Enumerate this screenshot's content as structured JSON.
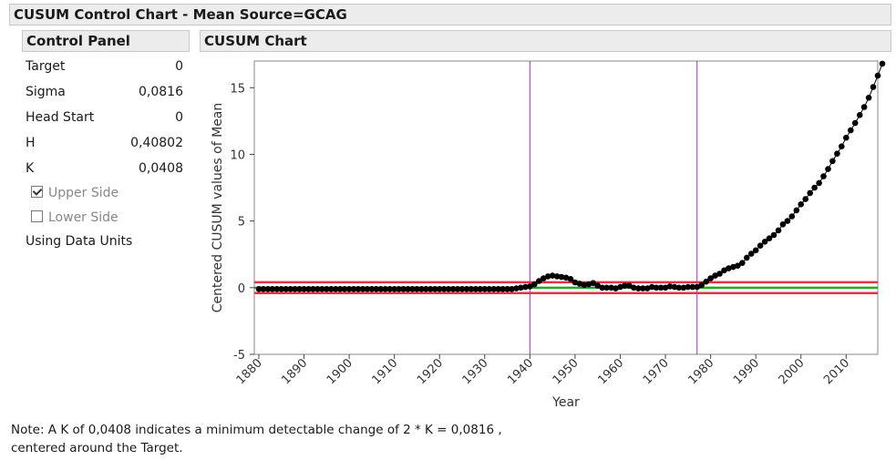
{
  "window": {
    "title": "CUSUM Control Chart - Mean Source=GCAG"
  },
  "control_panel": {
    "title": "Control Panel",
    "params": [
      {
        "label": "Target",
        "value": "0"
      },
      {
        "label": "Sigma",
        "value": "0,0816"
      },
      {
        "label": "Head Start",
        "value": "0"
      },
      {
        "label": "H",
        "value": "0,40802"
      },
      {
        "label": "K",
        "value": "0,0408"
      }
    ],
    "upper_side": {
      "label": "Upper Side",
      "checked": true
    },
    "lower_side": {
      "label": "Lower Side",
      "checked": false
    },
    "units_label": "Using Data Units"
  },
  "chart_panel": {
    "title": "CUSUM Chart"
  },
  "note": "Note: A K of 0,0408 indicates a minimum detectable change of 2 * K = 0,0816 , centered around the Target.",
  "colors": {
    "limit": "#e8304a",
    "center": "#22aa22",
    "marker": "#000000",
    "ref_line": "#9b30c8"
  },
  "chart_data": {
    "type": "scatter",
    "title": "",
    "xlabel": "Year",
    "ylabel": "Centered CUSUM values of Mean",
    "xlim": [
      1879,
      2017
    ],
    "ylim": [
      -5,
      17
    ],
    "x_ticks": [
      "1880",
      "1890",
      "1900",
      "1910",
      "1920",
      "1930",
      "1940",
      "1950",
      "1960",
      "1970",
      "1980",
      "1990",
      "2000",
      "2010"
    ],
    "y_ticks": [
      "-5",
      "0",
      "5",
      "10",
      "15"
    ],
    "grid": false,
    "upper_limit": 0.408,
    "lower_limit": -0.408,
    "center_line": 0,
    "vertical_lines": [
      1940,
      1977
    ],
    "x_start": 1880,
    "series": [
      {
        "values": [
          -0.1,
          -0.1,
          -0.1,
          -0.1,
          -0.1,
          -0.1,
          -0.1,
          -0.1,
          -0.1,
          -0.1,
          -0.1,
          -0.1,
          -0.1,
          -0.1,
          -0.1,
          -0.1,
          -0.1,
          -0.1,
          -0.1,
          -0.1,
          -0.1,
          -0.1,
          -0.1,
          -0.1,
          -0.1,
          -0.1,
          -0.1,
          -0.1,
          -0.1,
          -0.1,
          -0.1,
          -0.1,
          -0.1,
          -0.1,
          -0.1,
          -0.1,
          -0.1,
          -0.1,
          -0.1,
          -0.1,
          -0.1,
          -0.1,
          -0.1,
          -0.1,
          -0.1,
          -0.1,
          -0.1,
          -0.1,
          -0.1,
          -0.1,
          -0.1,
          -0.1,
          -0.1,
          -0.1,
          -0.1,
          -0.1,
          -0.1,
          -0.05,
          0.0,
          0.05,
          0.1,
          0.25,
          0.5,
          0.7,
          0.85,
          0.9,
          0.85,
          0.8,
          0.75,
          0.65,
          0.4,
          0.3,
          0.2,
          0.25,
          0.35,
          0.15,
          0.0,
          0.0,
          0.0,
          -0.05,
          0.05,
          0.15,
          0.15,
          0.0,
          -0.05,
          -0.05,
          -0.05,
          0.05,
          0.0,
          0.0,
          0.0,
          0.1,
          0.05,
          0.0,
          0.0,
          0.05,
          0.05,
          0.05,
          0.2,
          0.45,
          0.7,
          0.9,
          1.05,
          1.3,
          1.45,
          1.55,
          1.65,
          1.85,
          2.25,
          2.55,
          2.8,
          3.15,
          3.45,
          3.7,
          3.95,
          4.3,
          4.75,
          5.0,
          5.35,
          5.8,
          6.25,
          6.65,
          7.1,
          7.5,
          7.85,
          8.35,
          8.9,
          9.5,
          10.05,
          10.6,
          11.25,
          11.8,
          12.35,
          12.95,
          13.55,
          14.25,
          15.05,
          15.9,
          16.8
        ]
      }
    ]
  }
}
